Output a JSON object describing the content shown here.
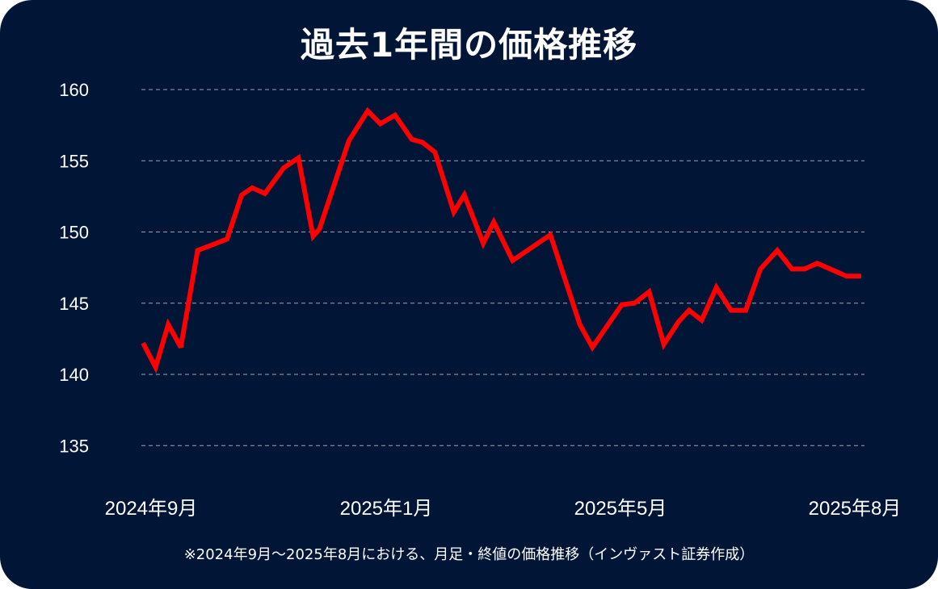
{
  "chart_data": {
    "type": "line",
    "title": "過去1年間の価格推移",
    "xlabel": "",
    "ylabel": "",
    "ylim": [
      135,
      160
    ],
    "yticks": [
      "160",
      "155",
      "150",
      "145",
      "140",
      "135"
    ],
    "xticks": [
      "2024年9月",
      "2025年1月",
      "2025年5月",
      "2025年8月"
    ],
    "grid": true,
    "line_color": "#ff0000",
    "background": "#011636",
    "x": [
      "2024-09-02",
      "2024-09-08",
      "2024-09-14",
      "2024-09-20",
      "2024-09-28",
      "2024-10-12",
      "2024-10-19",
      "2024-10-24",
      "2024-10-30",
      "2024-11-08",
      "2024-11-15",
      "2024-11-22",
      "2024-11-25",
      "2024-12-09",
      "2024-12-18",
      "2024-12-24",
      "2024-12-31",
      "2025-01-08",
      "2025-01-13",
      "2025-01-19",
      "2025-01-28",
      "2025-02-02",
      "2025-02-11",
      "2025-02-16",
      "2025-02-25",
      "2025-03-15",
      "2025-03-29",
      "2025-04-04",
      "2025-04-18",
      "2025-04-24",
      "2025-05-01",
      "2025-05-08",
      "2025-05-15",
      "2025-05-20",
      "2025-05-26",
      "2025-06-02",
      "2025-06-09",
      "2025-06-16",
      "2025-06-23",
      "2025-07-01",
      "2025-07-08",
      "2025-07-14",
      "2025-07-20",
      "2025-08-03",
      "2025-08-10"
    ],
    "values": [
      142.2,
      140.5,
      143.5,
      141.9,
      148.7,
      149.5,
      152.6,
      153.1,
      152.7,
      154.5,
      155.2,
      149.7,
      150.2,
      156.4,
      158.5,
      157.6,
      158.2,
      156.5,
      156.3,
      155.6,
      151.4,
      152.6,
      149.2,
      150.7,
      148.0,
      149.8,
      143.5,
      141.9,
      144.9,
      145.0,
      145.8,
      142.1,
      143.7,
      144.5,
      143.8,
      146.1,
      144.5,
      144.5,
      147.4,
      148.7,
      147.4,
      147.4,
      147.8,
      146.9,
      146.9
    ]
  },
  "footnote": "※2024年9月～2025年8月における、月足・終値の価格推移（インヴァスト証券作成）"
}
